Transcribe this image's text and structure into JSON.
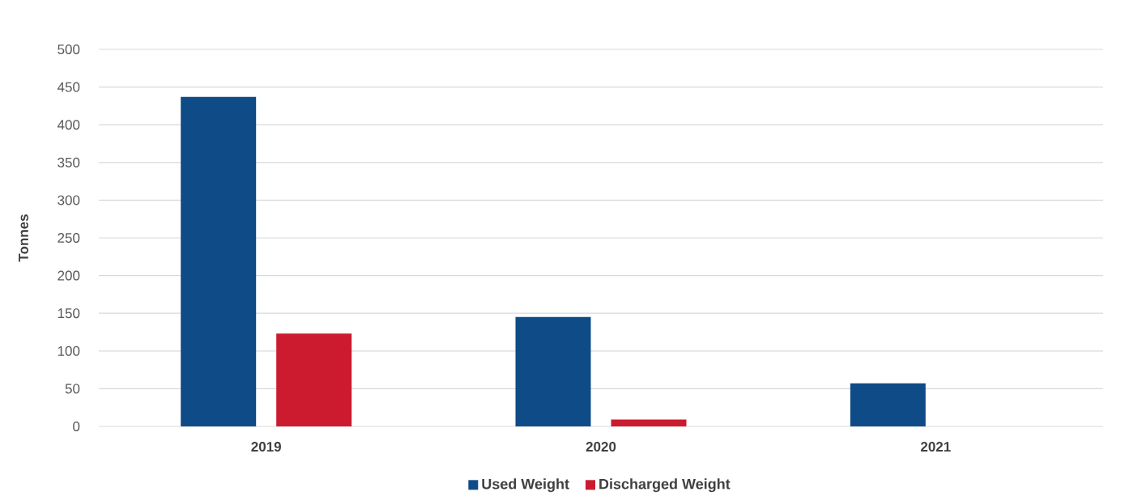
{
  "chart_data": {
    "type": "bar",
    "ylabel": "Tonnes",
    "categories": [
      "2019",
      "2020",
      "2021"
    ],
    "series": [
      {
        "name": "Used Weight",
        "color": "#0f4c87",
        "values": [
          437,
          145,
          57
        ]
      },
      {
        "name": "Discharged Weight",
        "color": "#cc1a2e",
        "values": [
          123,
          9,
          0
        ]
      }
    ],
    "ylim": [
      0,
      500
    ],
    "yticks": [
      0,
      50,
      100,
      150,
      200,
      250,
      300,
      350,
      400,
      450,
      500
    ],
    "grid": "y",
    "legend": "bottom"
  }
}
